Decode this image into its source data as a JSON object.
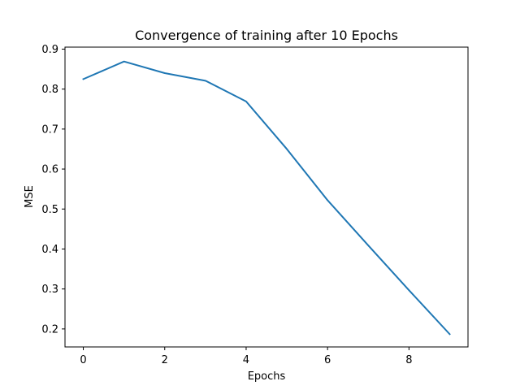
{
  "chart_data": {
    "type": "line",
    "title": "Convergence of training after 10 Epochs",
    "xlabel": "Epochs",
    "ylabel": "MSE",
    "xlim": [
      -0.45,
      9.45
    ],
    "ylim": [
      0.155,
      0.905
    ],
    "xticks": [
      0,
      2,
      4,
      6,
      8
    ],
    "xtick_labels": [
      "0",
      "2",
      "4",
      "6",
      "8"
    ],
    "yticks": [
      0.2,
      0.3,
      0.4,
      0.5,
      0.6,
      0.7,
      0.8,
      0.9
    ],
    "ytick_labels": [
      "0.2",
      "0.3",
      "0.4",
      "0.5",
      "0.6",
      "0.7",
      "0.8",
      "0.9"
    ],
    "grid": false,
    "series": [
      {
        "name": "MSE",
        "color": "#1f77b4",
        "x": [
          0,
          1,
          2,
          3,
          4,
          5,
          6,
          7,
          8,
          9
        ],
        "y": [
          0.825,
          0.869,
          0.84,
          0.821,
          0.769,
          0.65,
          0.522,
          0.409,
          0.297,
          0.187
        ]
      }
    ]
  }
}
